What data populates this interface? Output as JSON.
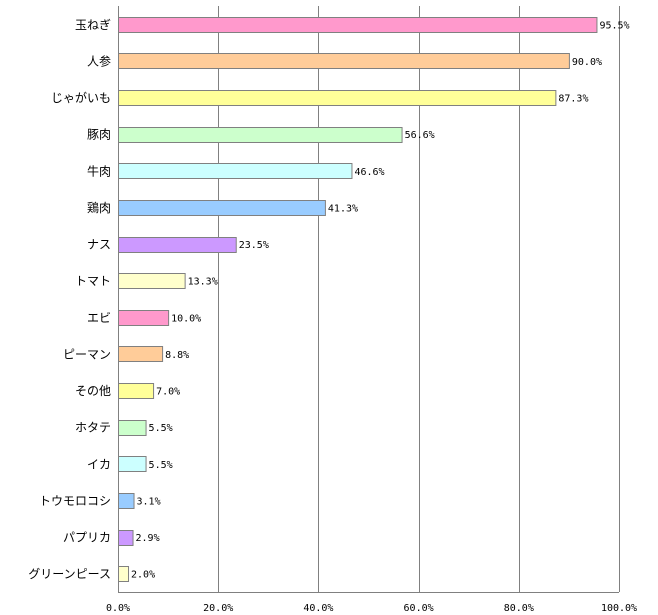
{
  "chart_data": {
    "type": "bar",
    "orientation": "horizontal",
    "title": "",
    "xlabel": "",
    "ylabel": "",
    "xlim": [
      0,
      100
    ],
    "grid": true,
    "legend": "none",
    "categories": [
      "玉ねぎ",
      "人参",
      "じゃがいも",
      "豚肉",
      "牛肉",
      "鶏肉",
      "ナス",
      "トマト",
      "エビ",
      "ピーマン",
      "その他",
      "ホタテ",
      "イカ",
      "トウモロコシ",
      "パプリカ",
      "グリーンピース"
    ],
    "values": [
      95.5,
      90.0,
      87.3,
      56.6,
      46.6,
      41.3,
      23.5,
      13.3,
      10.0,
      8.8,
      7.0,
      5.5,
      5.5,
      3.1,
      2.9,
      2.0
    ],
    "value_labels": [
      "95.5%",
      "90.0%",
      "87.3%",
      "56.6%",
      "46.6%",
      "41.3%",
      "23.5%",
      "13.3%",
      "10.0%",
      "8.8%",
      "7.0%",
      "5.5%",
      "5.5%",
      "3.1%",
      "2.9%",
      "2.0%"
    ],
    "ticks": [
      0,
      20,
      40,
      60,
      80,
      100
    ],
    "tick_labels": [
      "0.0%",
      "20.0%",
      "40.0%",
      "60.0%",
      "80.0%",
      "100.0%"
    ],
    "colors": [
      "#ff99cc",
      "#ffcc99",
      "#ffff99",
      "#ccffcc",
      "#ccffff",
      "#99ccff",
      "#cc99ff",
      "#ffffcc",
      "#ff99cc",
      "#ffcc99",
      "#ffff99",
      "#ccffcc",
      "#ccffff",
      "#99ccff",
      "#cc99ff",
      "#ffffcc"
    ],
    "bar_edge_color": "#808080",
    "grid_color": "#808080"
  }
}
